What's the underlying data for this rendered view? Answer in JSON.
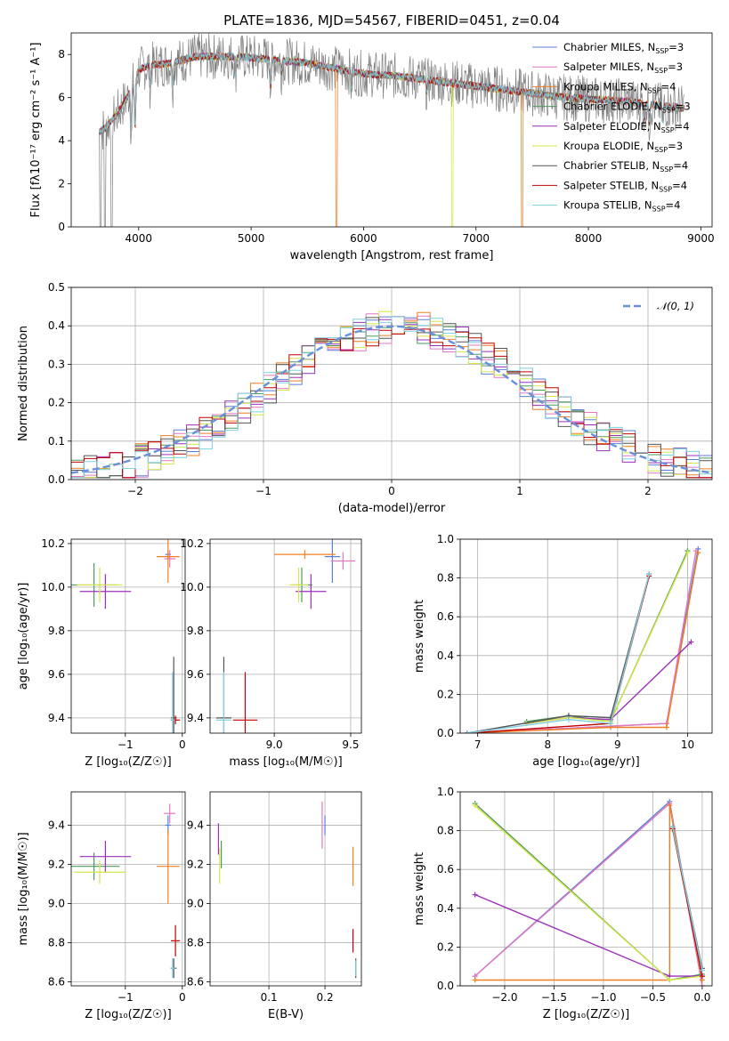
{
  "colors": {
    "Chabrier MILES": "#5b7fd6",
    "Salpeter MILES": "#e377c2",
    "Kroupa MILES": "#f07f21",
    "Chabrier ELODIE": "#4e9a5e",
    "Salpeter ELODIE": "#9b30b8",
    "Kroupa ELODIE": "#d6e64a",
    "Chabrier STELIB": "#555555",
    "Salpeter STELIB": "#c00000",
    "Kroupa STELIB": "#7fd0e0",
    "data": "#808080",
    "normal": "#6a8fdc"
  },
  "chart_data": [
    {
      "id": "spectrum",
      "type": "line",
      "title": "PLATE=1836, MJD=54567, FIBERID=0451, z=0.04",
      "xlabel": "wavelength [Angstrom, rest frame]",
      "ylabel": "Flux [fλ10⁻¹⁷ erg cm⁻² s⁻¹ A⁻¹]",
      "xlim": [
        3400,
        9100
      ],
      "ylim": [
        0,
        9
      ],
      "xticks": [
        4000,
        5000,
        6000,
        7000,
        8000,
        9000
      ],
      "yticks": [
        0,
        2,
        4,
        6,
        8
      ],
      "legend": [
        {
          "name": "Chabrier MILES",
          "sub": "3"
        },
        {
          "name": "Salpeter MILES",
          "sub": "3"
        },
        {
          "name": "Kroupa MILES",
          "sub": "4"
        },
        {
          "name": "Chabrier ELODIE",
          "sub": "3"
        },
        {
          "name": "Salpeter ELODIE",
          "sub": "4"
        },
        {
          "name": "Kroupa ELODIE",
          "sub": "3"
        },
        {
          "name": "Chabrier STELIB",
          "sub": "4"
        },
        {
          "name": "Salpeter STELIB",
          "sub": "4"
        },
        {
          "name": "Kroupa STELIB",
          "sub": "4"
        }
      ],
      "legend_prefix": "N",
      "legend_sub_label": "SSP",
      "continuum": [
        [
          3650,
          4.4
        ],
        [
          3700,
          4.6
        ],
        [
          3800,
          5.2
        ],
        [
          3900,
          6.0
        ],
        [
          4000,
          7.3
        ],
        [
          4100,
          7.5
        ],
        [
          4300,
          7.6
        ],
        [
          4500,
          7.9
        ],
        [
          4700,
          7.9
        ],
        [
          4900,
          7.9
        ],
        [
          5100,
          7.8
        ],
        [
          5300,
          7.7
        ],
        [
          5500,
          7.6
        ],
        [
          5800,
          7.3
        ],
        [
          6000,
          7.1
        ],
        [
          6300,
          7.0
        ],
        [
          6600,
          6.8
        ],
        [
          6900,
          6.6
        ],
        [
          7200,
          6.4
        ],
        [
          7500,
          6.2
        ],
        [
          7800,
          6.0
        ],
        [
          8100,
          5.9
        ],
        [
          8400,
          5.8
        ],
        [
          8700,
          5.6
        ],
        [
          8850,
          5.5
        ]
      ],
      "absorption": [
        [
          3934,
          2.0
        ],
        [
          3968,
          2.3
        ],
        [
          4102,
          1.0
        ],
        [
          4304,
          1.0
        ],
        [
          4861,
          0.8
        ],
        [
          5175,
          1.2
        ],
        [
          5270,
          0.5
        ],
        [
          5893,
          0.8
        ],
        [
          6563,
          0.6
        ],
        [
          8498,
          0.7
        ],
        [
          8542,
          0.9
        ],
        [
          8662,
          0.8
        ]
      ],
      "model_dropouts": [
        [
          5760,
          "Kroupa MILES"
        ],
        [
          6790,
          "Kroupa ELODIE"
        ],
        [
          7410,
          "Kroupa MILES"
        ]
      ]
    },
    {
      "id": "residuals",
      "type": "histogram",
      "xlabel": "(data-model)/error",
      "ylabel": "Normed distribution",
      "xlim": [
        -2.5,
        2.5
      ],
      "ylim": [
        0,
        0.5
      ],
      "xticks": [
        -2,
        -1,
        0,
        1,
        2
      ],
      "yticks": [
        0.0,
        0.1,
        0.2,
        0.3,
        0.4,
        0.5
      ],
      "legend": [
        "𝒩(0, 1)"
      ],
      "bin_width": 0.1
    },
    {
      "id": "age_vs_Z",
      "type": "scatter",
      "xlabel": "Z [log₁₀(Z/Z☉)]",
      "ylabel": "age  [log₁₀(age/yr)]",
      "xlim": [
        -1.95,
        0.05
      ],
      "ylim": [
        9.33,
        10.22
      ],
      "xticks": [
        -1,
        0
      ],
      "yticks": [
        9.4,
        9.6,
        9.8,
        10.0,
        10.2
      ],
      "points": [
        {
          "model": "Chabrier MILES",
          "x": -0.25,
          "y": 10.15,
          "xe": 0.05,
          "ye": 0.02
        },
        {
          "model": "Salpeter MILES",
          "x": -0.22,
          "y": 10.13,
          "xe": 0.1,
          "ye": 0.04
        },
        {
          "model": "Kroupa MILES",
          "x": -0.25,
          "y": 10.14,
          "xe": 0.2,
          "ye": 0.12
        },
        {
          "model": "Chabrier ELODIE",
          "x": -1.55,
          "y": 10.01,
          "xe": 0.45,
          "ye": 0.1
        },
        {
          "model": "Salpeter ELODIE",
          "x": -1.35,
          "y": 9.98,
          "xe": 0.45,
          "ye": 0.08
        },
        {
          "model": "Kroupa ELODIE",
          "x": -1.45,
          "y": 10.01,
          "xe": 0.4,
          "ye": 0.08
        },
        {
          "model": "Chabrier STELIB",
          "x": -0.15,
          "y": 9.4,
          "xe": 0.05,
          "ye": 0.28
        },
        {
          "model": "Salpeter STELIB",
          "x": -0.12,
          "y": 9.39,
          "xe": 0.08,
          "ye": 0.02
        },
        {
          "model": "Kroupa STELIB",
          "x": -0.17,
          "y": 9.39,
          "xe": 0.04,
          "ye": 0.22
        }
      ]
    },
    {
      "id": "age_vs_mass",
      "type": "scatter",
      "xlabel": "mass [log₁₀(M/M☉)]",
      "ylabel": "",
      "xlim": [
        8.58,
        9.57
      ],
      "ylim": [
        9.33,
        10.22
      ],
      "xticks": [
        9.0,
        9.5
      ],
      "yticks": [
        9.4,
        9.6,
        9.8,
        10.0,
        10.2
      ],
      "points": [
        {
          "model": "Chabrier MILES",
          "x": 9.38,
          "y": 10.14,
          "xe": 0.05,
          "ye": 0.12
        },
        {
          "model": "Salpeter MILES",
          "x": 9.45,
          "y": 10.12,
          "xe": 0.08,
          "ye": 0.04
        },
        {
          "model": "Kroupa MILES",
          "x": 9.2,
          "y": 10.15,
          "xe": 0.2,
          "ye": 0.02
        },
        {
          "model": "Chabrier ELODIE",
          "x": 9.18,
          "y": 10.01,
          "xe": 0.07,
          "ye": 0.08
        },
        {
          "model": "Salpeter ELODIE",
          "x": 9.24,
          "y": 9.98,
          "xe": 0.1,
          "ye": 0.08
        },
        {
          "model": "Kroupa ELODIE",
          "x": 9.16,
          "y": 10.01,
          "xe": 0.06,
          "ye": 0.08
        },
        {
          "model": "Chabrier STELIB",
          "x": 8.67,
          "y": 9.4,
          "xe": 0.05,
          "ye": 0.28
        },
        {
          "model": "Salpeter STELIB",
          "x": 8.81,
          "y": 9.39,
          "xe": 0.08,
          "ye": 0.22
        },
        {
          "model": "Kroupa STELIB",
          "x": 8.67,
          "y": 9.39,
          "xe": 0.05,
          "ye": 0.22
        }
      ]
    },
    {
      "id": "weight_vs_age",
      "type": "line",
      "xlabel": "age  [log₁₀(age/yr)]",
      "ylabel": "mass weight",
      "xlim": [
        6.75,
        10.35
      ],
      "ylim": [
        0,
        1
      ],
      "xticks": [
        7,
        8,
        9,
        10
      ],
      "yticks": [
        0.0,
        0.2,
        0.4,
        0.6,
        0.8,
        1.0
      ],
      "series": [
        {
          "model": "Chabrier MILES",
          "x": [
            6.85,
            9.7,
            10.15
          ],
          "y": [
            0.0,
            0.05,
            0.95
          ]
        },
        {
          "model": "Salpeter MILES",
          "x": [
            6.85,
            9.7,
            10.12
          ],
          "y": [
            0.0,
            0.05,
            0.94
          ]
        },
        {
          "model": "Kroupa MILES",
          "x": [
            6.85,
            8.9,
            9.7,
            10.15
          ],
          "y": [
            0.0,
            0.03,
            0.03,
            0.93
          ]
        },
        {
          "model": "Chabrier ELODIE",
          "x": [
            7.7,
            8.3,
            8.9,
            10.0
          ],
          "y": [
            0.06,
            0.09,
            0.06,
            0.94
          ]
        },
        {
          "model": "Salpeter ELODIE",
          "x": [
            7.7,
            8.3,
            8.9,
            10.05
          ],
          "y": [
            0.05,
            0.08,
            0.07,
            0.47
          ]
        },
        {
          "model": "Kroupa ELODIE",
          "x": [
            7.7,
            8.3,
            8.9,
            10.0
          ],
          "y": [
            0.05,
            0.08,
            0.06,
            0.93
          ]
        },
        {
          "model": "Chabrier STELIB",
          "x": [
            6.85,
            8.3,
            8.9,
            9.45
          ],
          "y": [
            0.0,
            0.09,
            0.08,
            0.82
          ]
        },
        {
          "model": "Salpeter STELIB",
          "x": [
            6.85,
            8.9,
            9.45
          ],
          "y": [
            0.0,
            0.05,
            0.81
          ]
        },
        {
          "model": "Kroupa STELIB",
          "x": [
            6.85,
            8.3,
            8.9,
            9.45
          ],
          "y": [
            0.0,
            0.07,
            0.05,
            0.82
          ]
        }
      ]
    },
    {
      "id": "mass_vs_Z",
      "type": "scatter",
      "xlabel": "Z [log₁₀(Z/Z☉)]",
      "ylabel": "mass [log₁₀(M/M☉)]",
      "xlim": [
        -1.95,
        0.05
      ],
      "ylim": [
        8.58,
        9.57
      ],
      "xticks": [
        -1,
        0
      ],
      "yticks": [
        8.6,
        8.8,
        9.0,
        9.2,
        9.4
      ],
      "points": [
        {
          "model": "Chabrier MILES",
          "x": -0.25,
          "y": 9.4,
          "xe": 0.05,
          "ye": 0.05
        },
        {
          "model": "Salpeter MILES",
          "x": -0.22,
          "y": 9.46,
          "xe": 0.1,
          "ye": 0.05
        },
        {
          "model": "Kroupa MILES",
          "x": -0.25,
          "y": 9.19,
          "xe": 0.2,
          "ye": 0.19
        },
        {
          "model": "Chabrier ELODIE",
          "x": -1.55,
          "y": 9.19,
          "xe": 0.45,
          "ye": 0.07
        },
        {
          "model": "Salpeter ELODIE",
          "x": -1.35,
          "y": 9.24,
          "xe": 0.45,
          "ye": 0.08
        },
        {
          "model": "Kroupa ELODIE",
          "x": -1.45,
          "y": 9.16,
          "xe": 0.45,
          "ye": 0.06
        },
        {
          "model": "Chabrier STELIB",
          "x": -0.15,
          "y": 8.67,
          "xe": 0.05,
          "ye": 0.05
        },
        {
          "model": "Salpeter STELIB",
          "x": -0.12,
          "y": 8.81,
          "xe": 0.08,
          "ye": 0.08
        },
        {
          "model": "Kroupa STELIB",
          "x": -0.17,
          "y": 8.67,
          "xe": 0.04,
          "ye": 0.05
        }
      ]
    },
    {
      "id": "mass_vs_ebv",
      "type": "scatter",
      "xlabel": "E(B-V)",
      "ylabel": "",
      "xlim": [
        -0.005,
        0.265
      ],
      "ylim": [
        8.58,
        9.57
      ],
      "xticks": [
        0.1,
        0.2
      ],
      "yticks": [
        8.6,
        8.8,
        9.0,
        9.2,
        9.4
      ],
      "points": [
        {
          "model": "Chabrier MILES",
          "x": 0.2,
          "y": 9.4,
          "xe": 0.0,
          "ye": 0.05
        },
        {
          "model": "Salpeter MILES",
          "x": 0.195,
          "y": 9.4,
          "xe": 0.0,
          "ye": 0.12
        },
        {
          "model": "Kroupa MILES",
          "x": 0.25,
          "y": 9.19,
          "xe": 0.0,
          "ye": 0.1
        },
        {
          "model": "Chabrier ELODIE",
          "x": 0.015,
          "y": 9.25,
          "xe": 0.0,
          "ye": 0.07
        },
        {
          "model": "Salpeter ELODIE",
          "x": 0.01,
          "y": 9.33,
          "xe": 0.0,
          "ye": 0.08
        },
        {
          "model": "Kroupa ELODIE",
          "x": 0.012,
          "y": 9.19,
          "xe": 0.0,
          "ye": 0.09
        },
        {
          "model": "Chabrier STELIB",
          "x": 0.255,
          "y": 8.67,
          "xe": 0.0,
          "ye": 0.05
        },
        {
          "model": "Salpeter STELIB",
          "x": 0.25,
          "y": 8.81,
          "xe": 0.0,
          "ye": 0.06
        },
        {
          "model": "Kroupa STELIB",
          "x": 0.255,
          "y": 8.67,
          "xe": 0.0,
          "ye": 0.04
        }
      ]
    },
    {
      "id": "weight_vs_Z",
      "type": "line",
      "xlabel": "Z [log₁₀(Z/Z☉)]",
      "ylabel": "mass weight",
      "xlim": [
        -2.45,
        0.1
      ],
      "ylim": [
        0,
        1
      ],
      "xticks": [
        -2.0,
        -1.5,
        -1.0,
        -0.5,
        0.0
      ],
      "yticks": [
        0.0,
        0.2,
        0.4,
        0.6,
        0.8,
        1.0
      ],
      "series": [
        {
          "model": "Chabrier MILES",
          "x": [
            -2.3,
            -0.33,
            0.0
          ],
          "y": [
            0.05,
            0.95,
            0.0
          ]
        },
        {
          "model": "Salpeter MILES",
          "x": [
            -2.3,
            -0.33,
            0.0
          ],
          "y": [
            0.05,
            0.94,
            0.0
          ]
        },
        {
          "model": "Kroupa MILES",
          "x": [
            -2.3,
            -0.33,
            -0.33,
            0.0
          ],
          "y": [
            0.03,
            0.03,
            0.93,
            0.03
          ]
        },
        {
          "model": "Chabrier ELODIE",
          "x": [
            -2.3,
            -0.33,
            0.0
          ],
          "y": [
            0.94,
            0.03,
            0.06
          ]
        },
        {
          "model": "Salpeter ELODIE",
          "x": [
            -2.3,
            -0.33,
            0.0
          ],
          "y": [
            0.47,
            0.05,
            0.05
          ]
        },
        {
          "model": "Kroupa ELODIE",
          "x": [
            -2.3,
            -0.33,
            0.0
          ],
          "y": [
            0.93,
            0.03,
            0.05
          ]
        },
        {
          "model": "Chabrier STELIB",
          "x": [
            -0.3,
            0.0
          ],
          "y": [
            0.82,
            0.09
          ]
        },
        {
          "model": "Salpeter STELIB",
          "x": [
            -0.3,
            0.0
          ],
          "y": [
            0.81,
            0.05
          ]
        },
        {
          "model": "Kroupa STELIB",
          "x": [
            -0.3,
            0.0
          ],
          "y": [
            0.82,
            0.08
          ]
        }
      ]
    }
  ]
}
